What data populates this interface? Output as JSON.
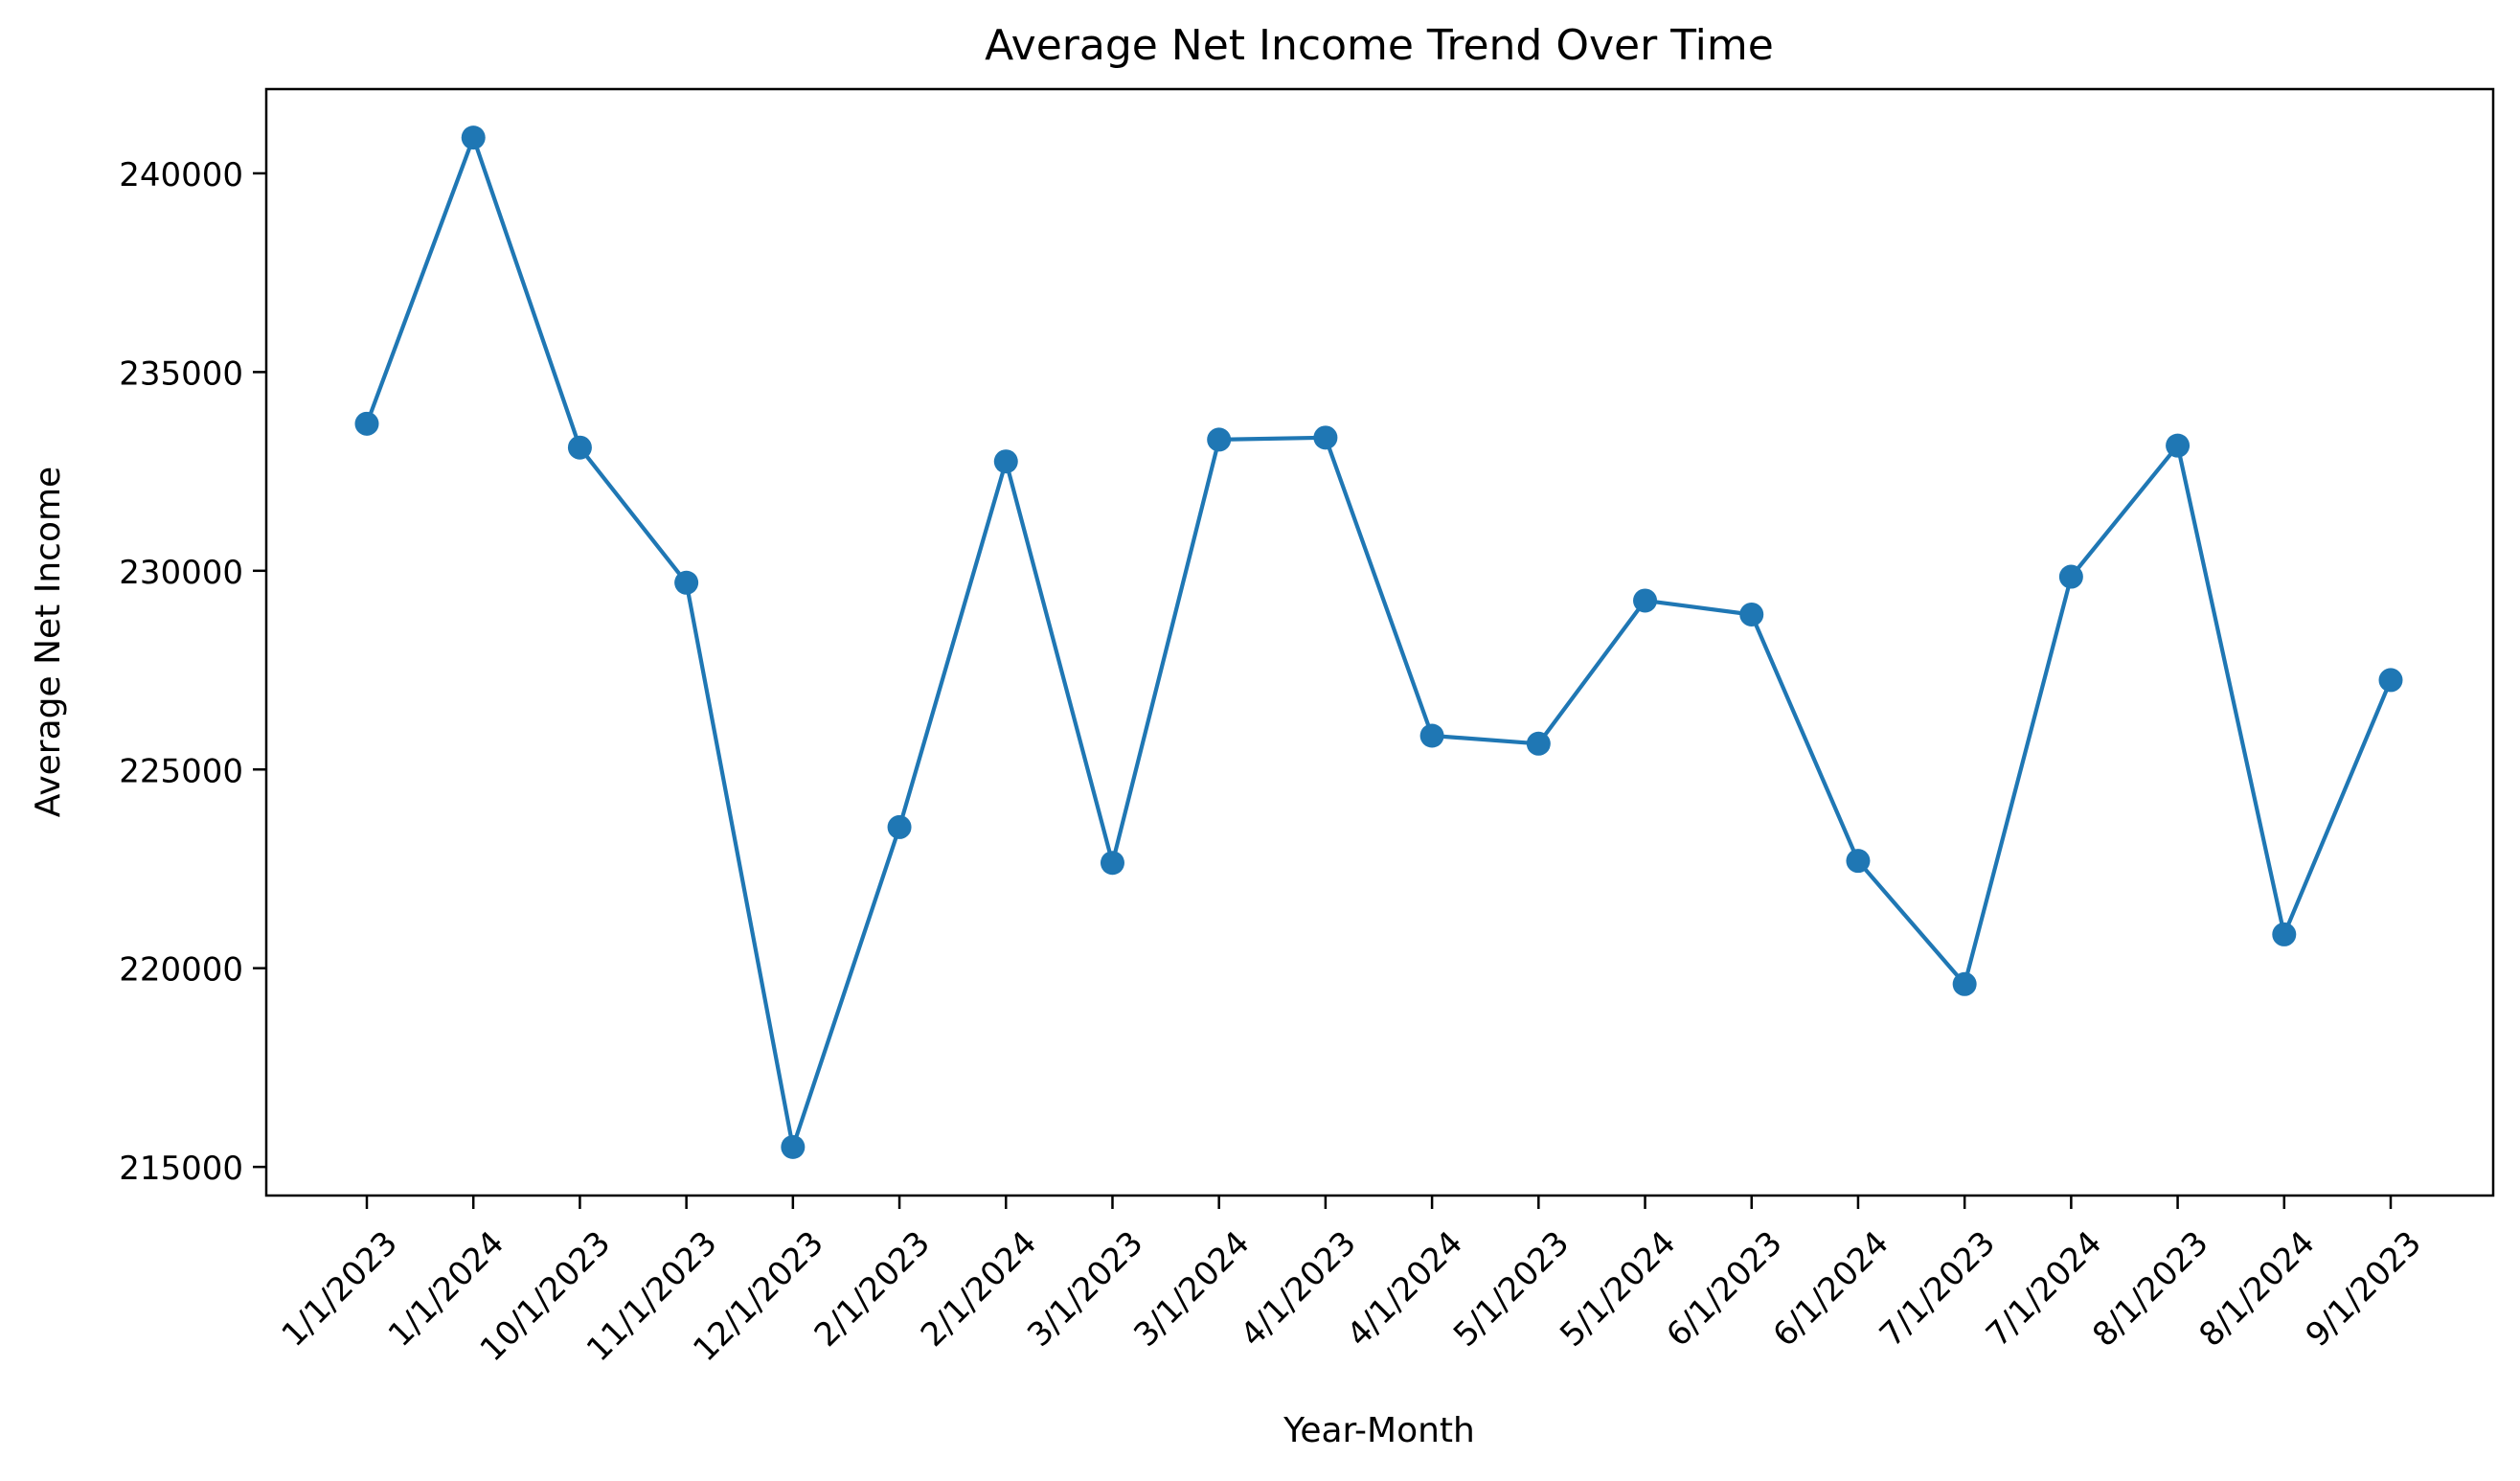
{
  "chart_data": {
    "type": "line",
    "title": "Average Net Income Trend Over Time",
    "xlabel": "Year-Month",
    "ylabel": "Average Net Income",
    "categories": [
      "1/1/2023",
      "1/1/2024",
      "10/1/2023",
      "11/1/2023",
      "12/1/2023",
      "2/1/2023",
      "2/1/2024",
      "3/1/2023",
      "3/1/2024",
      "4/1/2023",
      "4/1/2024",
      "5/1/2023",
      "5/1/2024",
      "6/1/2023",
      "6/1/2024",
      "7/1/2023",
      "7/1/2024",
      "8/1/2023",
      "8/1/2024",
      "9/1/2023"
    ],
    "series": [
      {
        "name": "Average Net Income",
        "values": [
          233700,
          240900,
          233100,
          229700,
          215500,
          223550,
          232750,
          222650,
          233300,
          233350,
          225850,
          225650,
          229250,
          228900,
          222700,
          219600,
          229850,
          233150,
          220850,
          227250
        ]
      }
    ],
    "ylim": [
      214280,
      242120
    ],
    "yticks": [
      215000,
      220000,
      225000,
      230000,
      235000,
      240000
    ],
    "ytick_labels": [
      "215000",
      "220000",
      "225000",
      "230000",
      "235000",
      "240000"
    ],
    "grid": false,
    "legend": "none",
    "color": "#1f77b4"
  }
}
